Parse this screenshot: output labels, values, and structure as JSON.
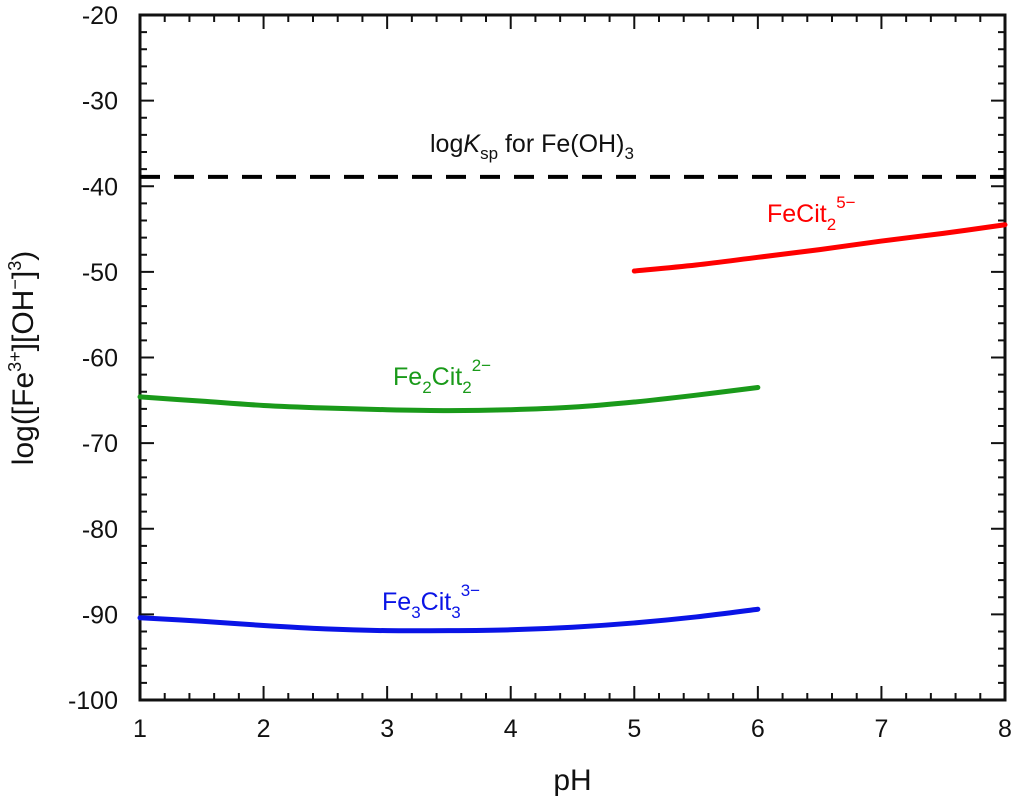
{
  "chart_data": {
    "type": "line",
    "title": "",
    "xlabel": "pH",
    "ylabel": "log([Fe3+][OH−]3)",
    "ylabel_parts": {
      "pre": "log([Fe",
      "sup1": "3+",
      "mid": "][OH",
      "sup2": "−",
      "post": "]",
      "sup3": "3",
      "end": ")"
    },
    "xlim": [
      1,
      8
    ],
    "ylim": [
      -100,
      -20
    ],
    "x_ticks": [
      "1",
      "2",
      "3",
      "4",
      "5",
      "6",
      "7",
      "8"
    ],
    "y_ticks": [
      "-20",
      "-30",
      "-40",
      "-50",
      "-60",
      "-70",
      "-80",
      "-90",
      "-100"
    ],
    "grid": false,
    "legend": "none (inline labels)",
    "reference_line": {
      "label": "logKsp for Fe(OH)3",
      "label_parts": {
        "pre": "log",
        "italic": "K",
        "sub": "sp",
        "mid": " for Fe(OH)",
        "sub2": "3"
      },
      "y": -38.9,
      "style": "dashed",
      "color": "#000000"
    },
    "series": [
      {
        "name": "FeCit2 5−",
        "label_parts": {
          "base": "FeCit",
          "sub": "2",
          "sup": "5−"
        },
        "color": "#ff0000",
        "x": [
          5.0,
          5.5,
          6.0,
          6.5,
          7.0,
          7.5,
          8.0
        ],
        "y": [
          -49.9,
          -49.2,
          -48.3,
          -47.4,
          -46.4,
          -45.5,
          -44.5
        ]
      },
      {
        "name": "Fe2Cit2 2−",
        "label_parts": {
          "pre": "Fe",
          "sub1": "2",
          "base": "Cit",
          "sub2": "2",
          "sup": "2−"
        },
        "color": "#1a9a1a",
        "x": [
          1.0,
          1.5,
          2.0,
          2.5,
          3.0,
          3.5,
          4.0,
          4.5,
          5.0,
          5.5,
          6.0
        ],
        "y": [
          -64.6,
          -65.1,
          -65.6,
          -65.9,
          -66.1,
          -66.2,
          -66.1,
          -65.8,
          -65.2,
          -64.4,
          -63.5
        ]
      },
      {
        "name": "Fe3Cit3 3−",
        "label_parts": {
          "pre": "Fe",
          "sub1": "3",
          "base": "Cit",
          "sub2": "3",
          "sup": "3−"
        },
        "color": "#0a14e6",
        "x": [
          1.0,
          1.5,
          2.0,
          2.5,
          3.0,
          3.5,
          4.0,
          4.5,
          5.0,
          5.5,
          6.0
        ],
        "y": [
          -90.4,
          -90.8,
          -91.3,
          -91.7,
          -91.9,
          -91.9,
          -91.8,
          -91.5,
          -91.0,
          -90.3,
          -89.4
        ]
      }
    ]
  }
}
